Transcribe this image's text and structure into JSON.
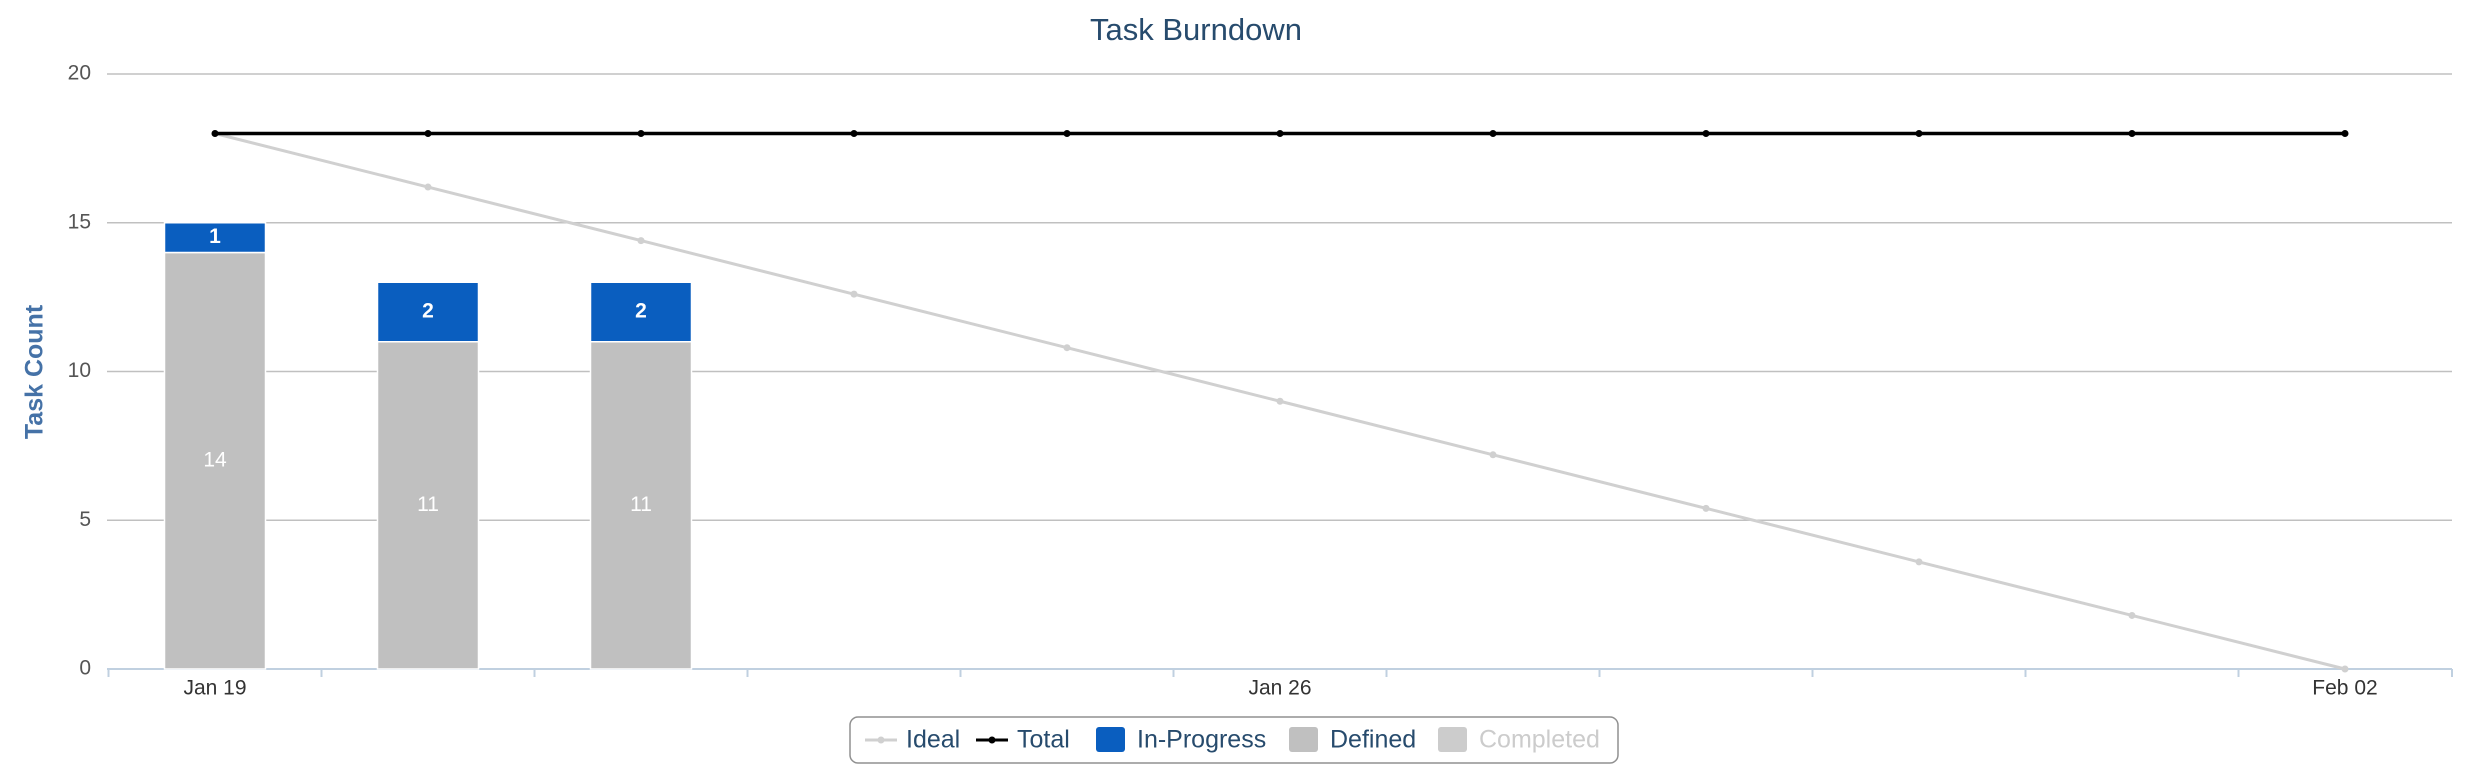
{
  "chart_data": {
    "type": "bar",
    "title": "Task Burndown",
    "y_label": "Task Count",
    "categories": [
      "Jan 19",
      null,
      null,
      null,
      null,
      "Jan 26",
      null,
      null,
      null,
      null,
      "Feb 02"
    ],
    "series": [
      {
        "name": "Ideal",
        "type": "line",
        "color": "#d0d0d0",
        "values": [
          18,
          16.2,
          14.4,
          12.6,
          10.8,
          9,
          7.2,
          5.4,
          3.6,
          1.8,
          0
        ]
      },
      {
        "name": "Total",
        "type": "line",
        "color": "#000000",
        "values": [
          18,
          18,
          18,
          18,
          18,
          18,
          18,
          18,
          18,
          18,
          18
        ]
      },
      {
        "name": "In-Progress",
        "type": "bar",
        "color": "#0a5ebf",
        "values": [
          1,
          2,
          2,
          null,
          null,
          null,
          null,
          null,
          null,
          null,
          null
        ]
      },
      {
        "name": "Defined",
        "type": "bar",
        "color": "#c0c0c0",
        "values": [
          14,
          11,
          11,
          null,
          null,
          null,
          null,
          null,
          null,
          null,
          null
        ]
      },
      {
        "name": "Completed",
        "type": "bar",
        "color": "#cccccc",
        "visible": false,
        "values": [
          null,
          null,
          null,
          null,
          null,
          null,
          null,
          null,
          null,
          null,
          null
        ]
      }
    ],
    "ylim": [
      0,
      20
    ],
    "yticks": [
      0,
      5,
      10,
      15,
      20
    ],
    "grid": true,
    "legend": "bottom"
  }
}
